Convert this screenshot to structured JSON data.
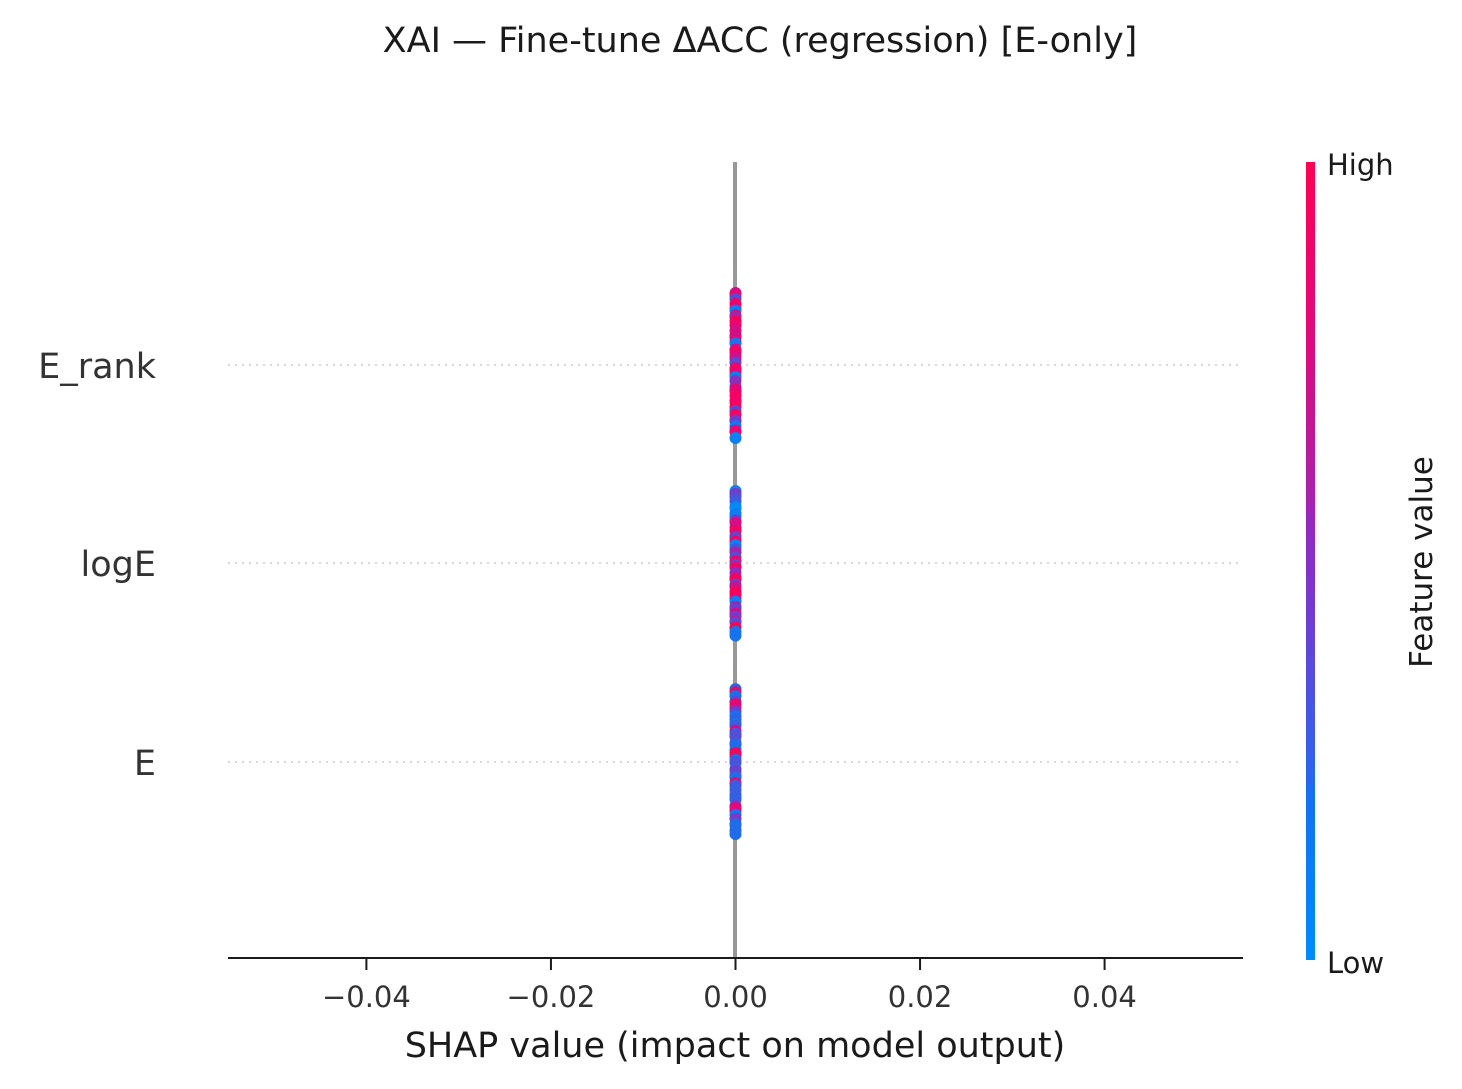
{
  "chart_data": {
    "type": "scatter",
    "subtype": "shap-beeswarm",
    "title": "XAI — Fine-tune ΔACC (regression) [E-only]",
    "xlabel": "SHAP value (impact on model output)",
    "ylabel": "",
    "xlim": [
      -0.055,
      0.055
    ],
    "xticks": [
      -0.04,
      -0.02,
      0.0,
      0.02,
      0.04
    ],
    "xtick_labels": [
      "−0.04",
      "−0.02",
      "0.00",
      "0.02",
      "0.04"
    ],
    "grid": false,
    "features": [
      {
        "name": "E_rank",
        "shap_value": 0.0,
        "n_points": 40,
        "color_mix": "mixed-high"
      },
      {
        "name": "logE",
        "shap_value": 0.0,
        "n_points": 40,
        "color_mix": "mixed"
      },
      {
        "name": "E",
        "shap_value": 0.0,
        "n_points": 40,
        "color_mix": "mostly-low"
      }
    ],
    "zero_line_color": "#999999",
    "colorbar": {
      "label": "Feature value",
      "high_label": "High",
      "low_label": "Low",
      "high_color": "#ff0052",
      "mid_color": "#9c1fa6",
      "low_color": "#008bfb"
    }
  }
}
